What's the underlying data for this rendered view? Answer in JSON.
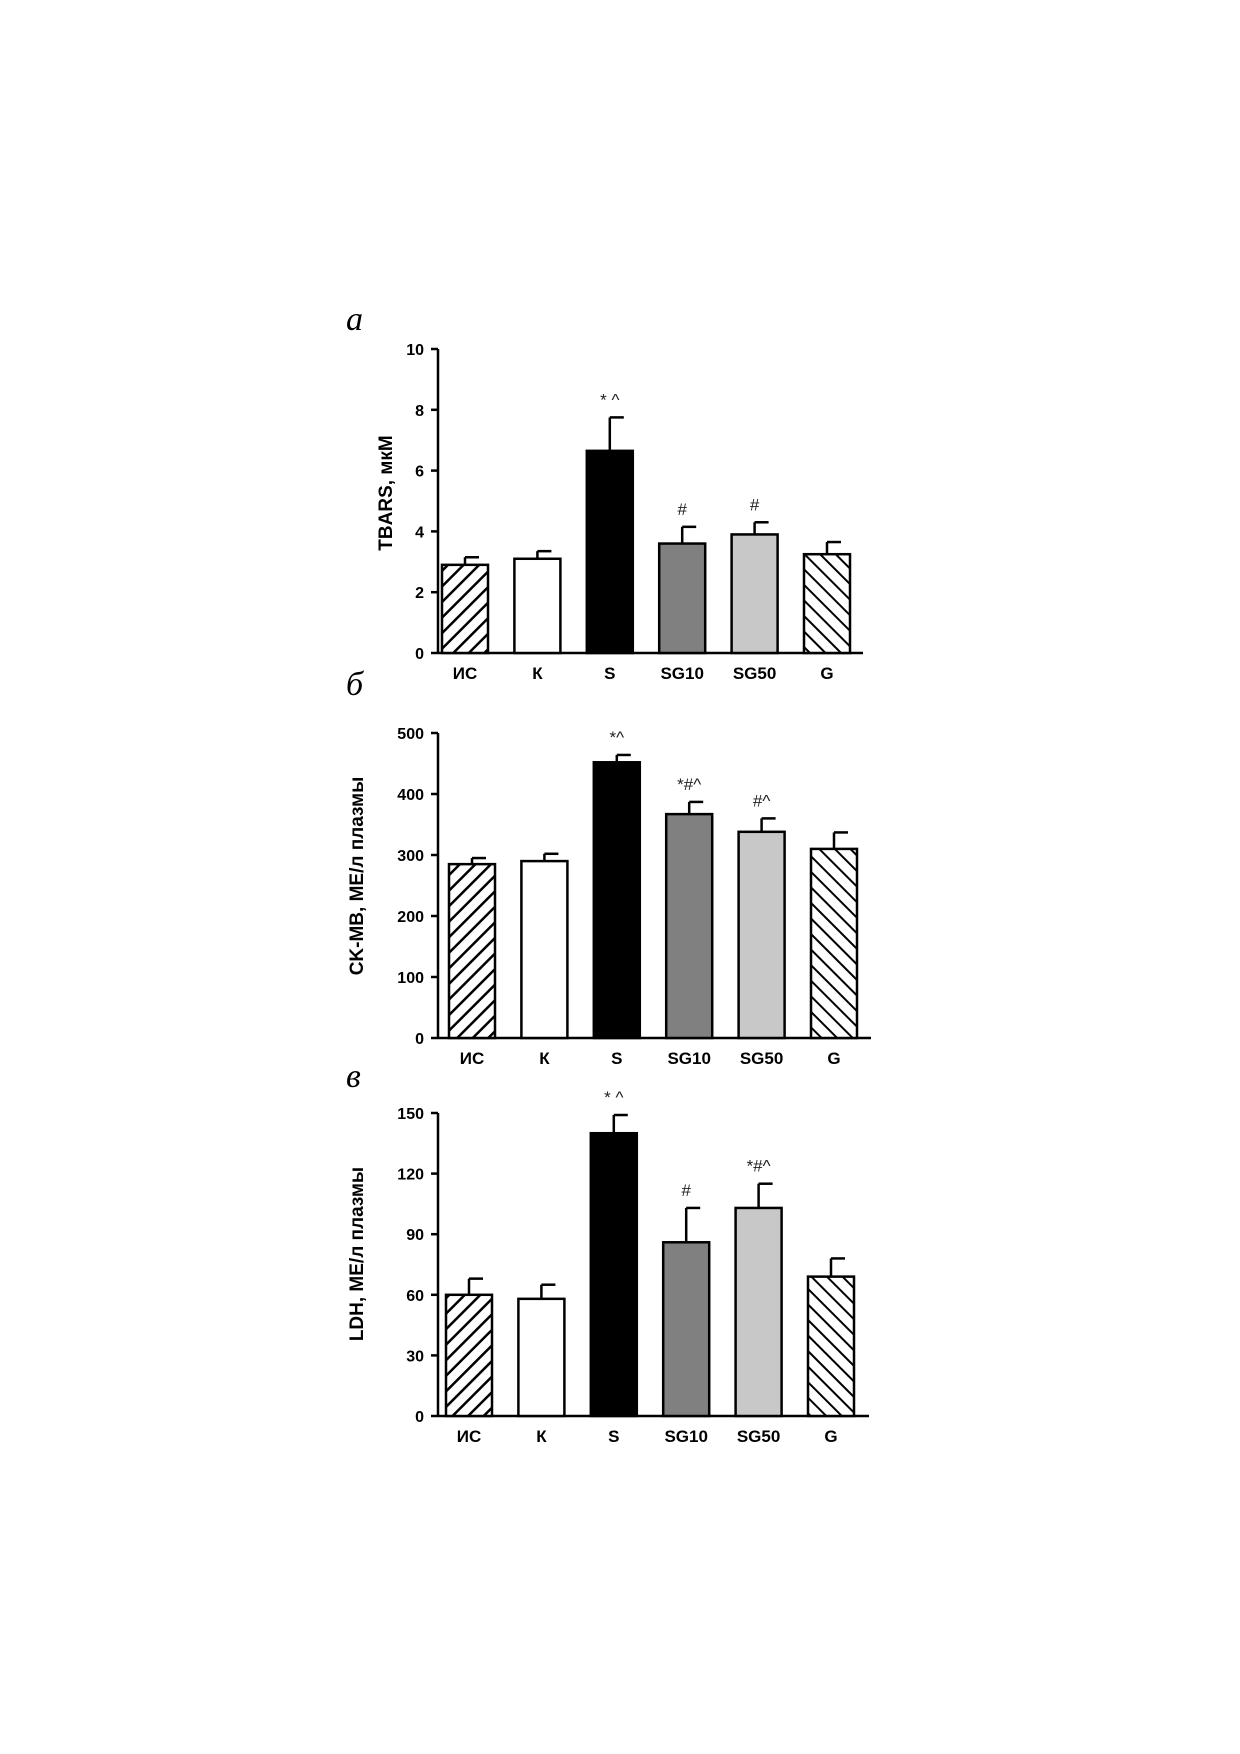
{
  "colors": {
    "ink": "#000000",
    "bar_IC": "#ffffff",
    "bar_K": "#ffffff",
    "bar_S": "#000000",
    "bar_SG10": "#808080",
    "bar_SG50": "#c8c8c8",
    "bar_G": "#ffffff"
  },
  "bar_styles": [
    "hatch-forward",
    "plain",
    "solid",
    "solid",
    "solid",
    "hatch-backward"
  ],
  "chart_data": [
    {
      "panel": "а",
      "type": "bar",
      "title": "",
      "xlabel": "",
      "ylabel": "TBARS, мкМ",
      "ylim": [
        0,
        10
      ],
      "yticks": [
        "0",
        "2",
        "4",
        "6",
        "8",
        "10"
      ],
      "grid": false,
      "categories": [
        "ИС",
        "К",
        "S",
        "SG10",
        "SG50",
        "G"
      ],
      "values": [
        2.9,
        3.1,
        6.65,
        3.6,
        3.9,
        3.25
      ],
      "errors": [
        0.25,
        0.25,
        1.1,
        0.55,
        0.4,
        0.4
      ],
      "annotations": [
        "",
        "",
        "* ^",
        "#",
        "#",
        ""
      ]
    },
    {
      "panel": "б",
      "type": "bar",
      "title": "",
      "xlabel": "",
      "ylabel": "CK-MB, МЕ/л плазмы",
      "ylim": [
        0,
        500
      ],
      "yticks": [
        "0",
        "100",
        "200",
        "300",
        "400",
        "500"
      ],
      "grid": false,
      "categories": [
        "ИС",
        "К",
        "S",
        "SG10",
        "SG50",
        "G"
      ],
      "values": [
        285,
        290,
        452,
        367,
        338,
        310
      ],
      "errors": [
        10,
        12,
        12,
        20,
        22,
        27
      ],
      "annotations": [
        "",
        "",
        "*^",
        "*#^",
        "#^",
        ""
      ]
    },
    {
      "panel": "в",
      "type": "bar",
      "title": "",
      "xlabel": "",
      "ylabel": "LDH, МЕ/л плазмы",
      "ylim": [
        0,
        150
      ],
      "yticks": [
        "0",
        "30",
        "60",
        "90",
        "120",
        "150"
      ],
      "grid": false,
      "categories": [
        "ИС",
        "К",
        "S",
        "SG10",
        "SG50",
        "G"
      ],
      "values": [
        60,
        58,
        140,
        86,
        103,
        69
      ],
      "errors": [
        8,
        7,
        9,
        17,
        12,
        9
      ],
      "annotations": [
        "",
        "",
        "* ^",
        "#",
        "*#^",
        ""
      ]
    }
  ]
}
